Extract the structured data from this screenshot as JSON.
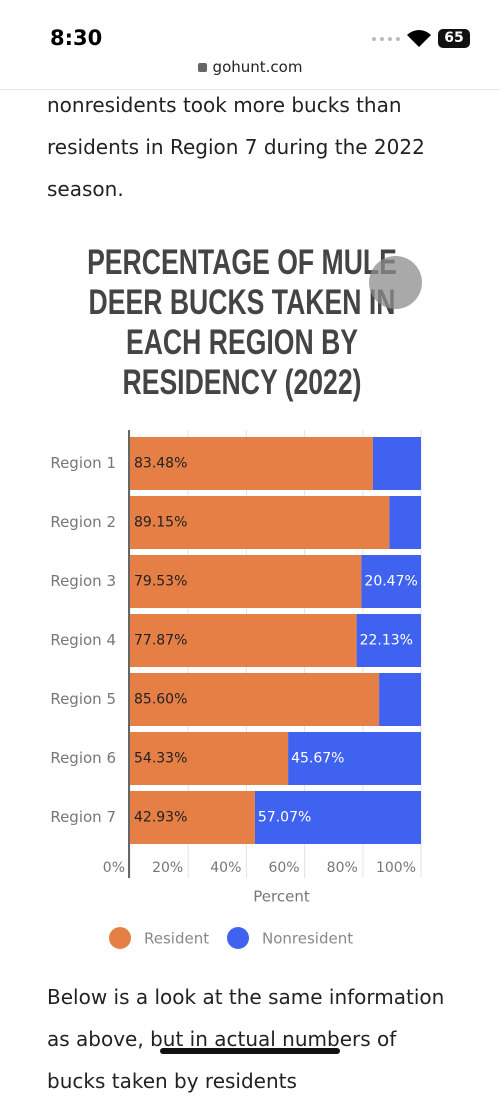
{
  "status": {
    "time": "8:30",
    "battery": "65"
  },
  "url": "gohunt.com",
  "intro": "nonresidents took more bucks than residents in Region 7 during the 2022 season.",
  "chart_data": {
    "type": "stacked-barh",
    "title": "PERCENTAGE OF MULE DEER BUCKS TAKEN IN EACH REGION BY RESIDENCY (2022)",
    "categories": [
      "Region 1",
      "Region 2",
      "Region 3",
      "Region 4",
      "Region 5",
      "Region 6",
      "Region 7"
    ],
    "series": [
      {
        "name": "Resident",
        "color": "#e57f46",
        "values": [
          83.48,
          89.15,
          79.53,
          77.87,
          85.6,
          54.33,
          42.93
        ],
        "value_labels": [
          "83.48%",
          "89.15%",
          "79.53%",
          "77.87%",
          "85.60%",
          "54.33%",
          "42.93%"
        ]
      },
      {
        "name": "Nonresident",
        "color": "#3f63f0",
        "values": [
          16.52,
          10.85,
          20.47,
          22.13,
          14.4,
          45.67,
          57.07
        ],
        "value_labels": [
          null,
          null,
          "20.47%",
          "22.13%",
          null,
          "45.67%",
          "57.07%"
        ]
      }
    ],
    "xlim": [
      0,
      100
    ],
    "xticks": [
      {
        "value": 0,
        "label": "0%"
      },
      {
        "value": 20,
        "label": "20%"
      },
      {
        "value": 40,
        "label": "40%"
      },
      {
        "value": 60,
        "label": "60%"
      },
      {
        "value": 80,
        "label": "80%"
      },
      {
        "value": 100,
        "label": "100%"
      }
    ],
    "xlabel": "Percent",
    "grid": true,
    "legend": "bottom"
  },
  "outro": "Below is a look at the same information as above, but in actual numbers of bucks taken by residents"
}
